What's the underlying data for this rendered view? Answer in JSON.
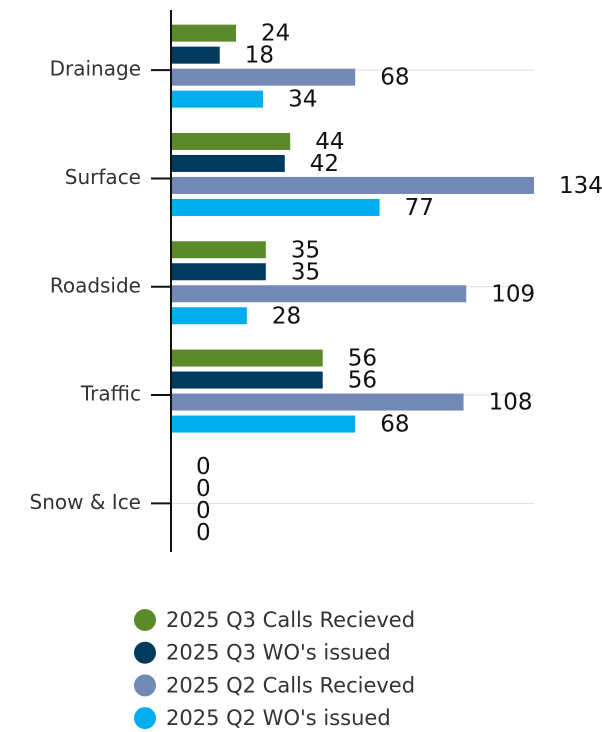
{
  "chart_data": {
    "type": "bar",
    "orientation": "horizontal",
    "categories": [
      "Drainage",
      "Surface",
      "Roadside",
      "Traffic",
      "Snow & Ice"
    ],
    "series": [
      {
        "name": "2025 Q3 Calls Recieved",
        "color": "#5b8a2a",
        "values": [
          24,
          44,
          35,
          56,
          0
        ]
      },
      {
        "name": "2025 Q3 WO's issued",
        "color": "#003a5c",
        "values": [
          18,
          42,
          35,
          56,
          0
        ]
      },
      {
        "name": "2025 Q2 Calls Recieved",
        "color": "#7289b5",
        "values": [
          68,
          134,
          109,
          108,
          0
        ]
      },
      {
        "name": "2025 Q2 WO's issued",
        "color": "#00aeef",
        "values": [
          34,
          77,
          28,
          68,
          0
        ]
      }
    ],
    "grid": true,
    "legend": "bottom"
  }
}
